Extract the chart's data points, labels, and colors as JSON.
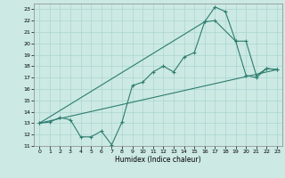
{
  "xlabel": "Humidex (Indice chaleur)",
  "background_color": "#cce9e4",
  "line_color": "#2d7d6e",
  "grid_color": "#aad6d0",
  "xlim": [
    -0.5,
    23.5
  ],
  "ylim": [
    11,
    23.5
  ],
  "xticks": [
    0,
    1,
    2,
    3,
    4,
    5,
    6,
    7,
    8,
    9,
    10,
    11,
    12,
    13,
    14,
    15,
    16,
    17,
    18,
    19,
    20,
    21,
    22,
    23
  ],
  "yticks": [
    11,
    12,
    13,
    14,
    15,
    16,
    17,
    18,
    19,
    20,
    21,
    22,
    23
  ],
  "line1_x": [
    0,
    1,
    2,
    3,
    4,
    5,
    6,
    7,
    8,
    9,
    10,
    11,
    12,
    13,
    14,
    15,
    16,
    17,
    18,
    19,
    20,
    21,
    22,
    23
  ],
  "line1_y": [
    13.0,
    13.1,
    13.5,
    13.3,
    11.8,
    11.8,
    12.3,
    11.1,
    13.1,
    16.3,
    16.6,
    17.5,
    18.0,
    17.5,
    18.8,
    19.2,
    21.9,
    23.2,
    22.8,
    20.2,
    17.2,
    17.0,
    17.8,
    17.7
  ],
  "line2_x": [
    0,
    23
  ],
  "line2_y": [
    13.0,
    17.7
  ],
  "line3_x": [
    0,
    16,
    17,
    19,
    20,
    21,
    22,
    23
  ],
  "line3_y": [
    13.0,
    21.9,
    22.0,
    20.2,
    20.2,
    17.2,
    17.8,
    17.7
  ]
}
